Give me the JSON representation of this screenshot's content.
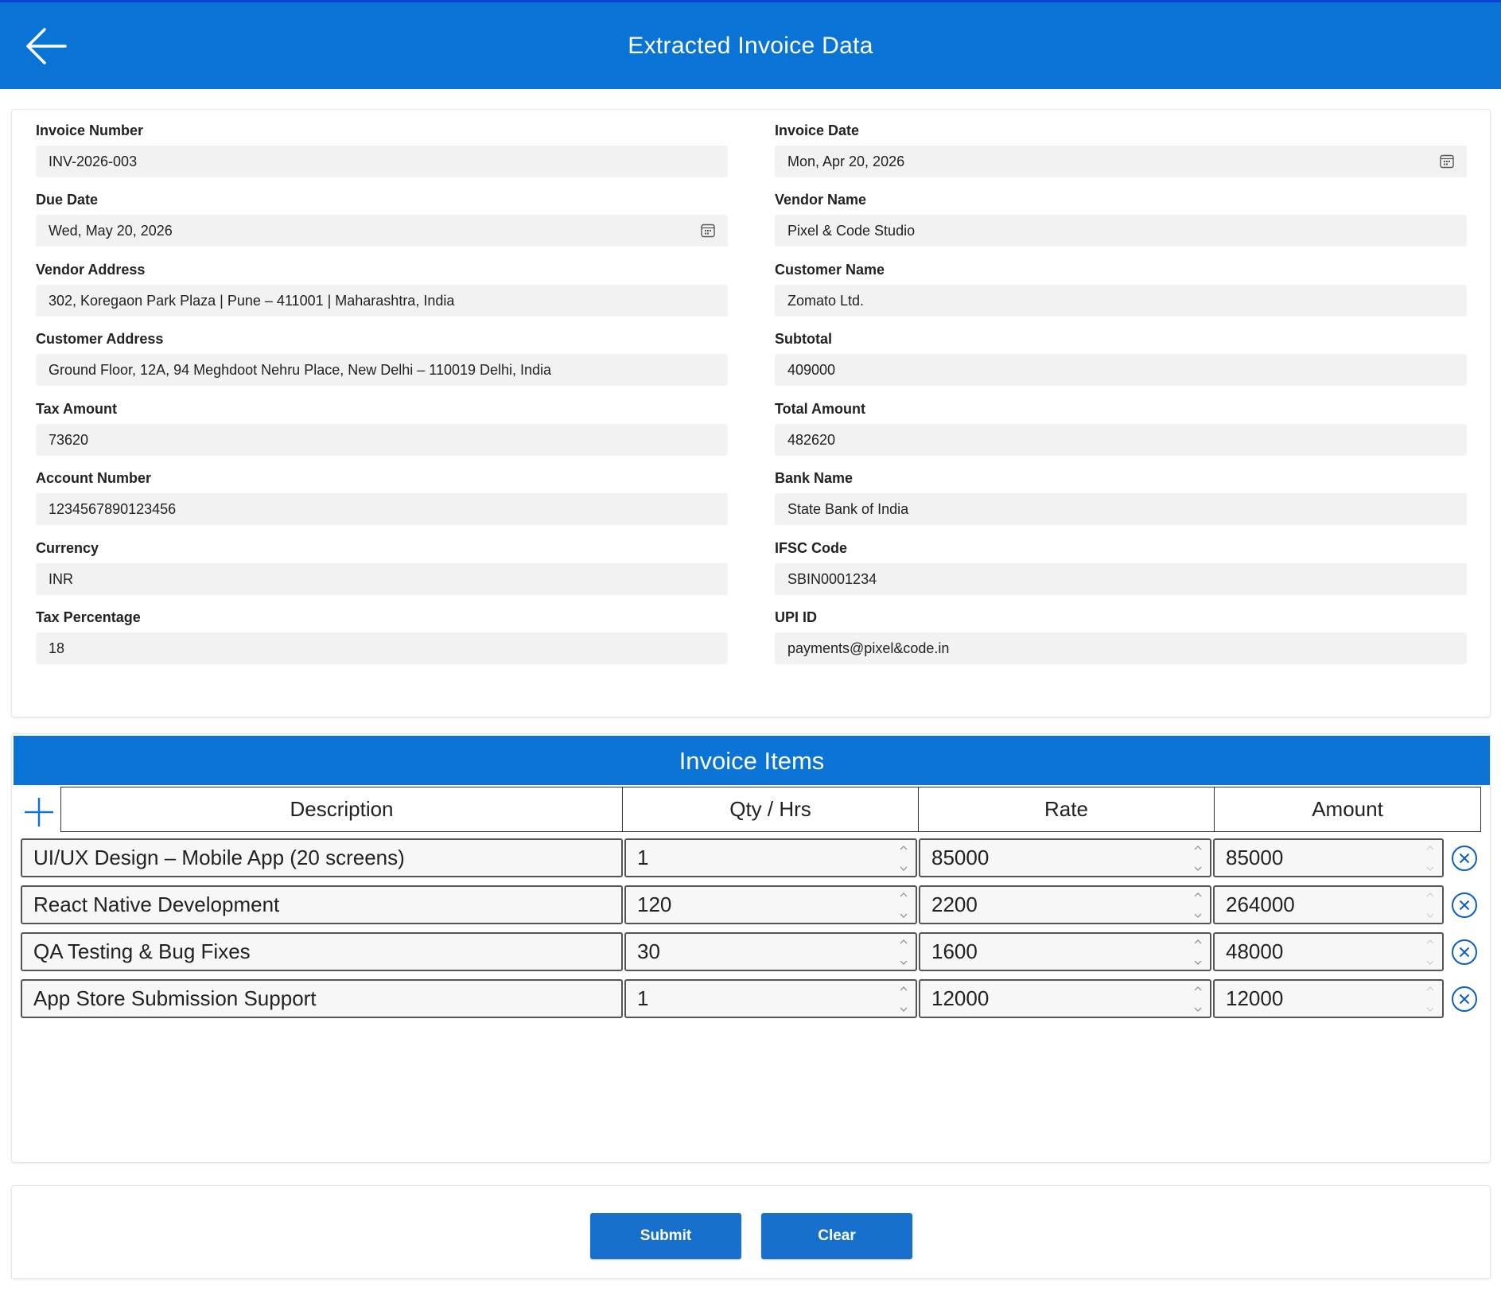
{
  "header": {
    "title": "Extracted Invoice Data",
    "back_icon": "arrow-left-icon"
  },
  "form": {
    "invoice_number": {
      "label": "Invoice Number",
      "value": "INV-2026-003"
    },
    "invoice_date": {
      "label": "Invoice Date",
      "value": "Mon, Apr 20, 2026"
    },
    "due_date": {
      "label": "Due Date",
      "value": "Wed, May 20, 2026"
    },
    "vendor_name": {
      "label": "Vendor Name",
      "value": "Pixel & Code Studio"
    },
    "vendor_address": {
      "label": "Vendor Address",
      "value": "302, Koregaon Park Plaza | Pune – 411001 | Maharashtra, India"
    },
    "customer_name": {
      "label": "Customer Name",
      "value": "Zomato Ltd."
    },
    "customer_address": {
      "label": "Customer Address",
      "value": "Ground Floor, 12A, 94 Meghdoot Nehru Place, New Delhi – 110019 Delhi, India"
    },
    "subtotal": {
      "label": "Subtotal",
      "value": "409000"
    },
    "tax_amount": {
      "label": "Tax Amount",
      "value": "73620"
    },
    "total_amount": {
      "label": "Total Amount",
      "value": "482620"
    },
    "account_number": {
      "label": "Account Number",
      "value": "1234567890123456"
    },
    "bank_name": {
      "label": "Bank Name",
      "value": "State Bank of India"
    },
    "currency": {
      "label": "Currency",
      "value": "INR"
    },
    "ifsc_code": {
      "label": "IFSC Code",
      "value": "SBIN0001234"
    },
    "tax_percentage": {
      "label": "Tax Percentage",
      "value": "18"
    },
    "upi_id": {
      "label": "UPI ID",
      "value": "payments@pixel&code.in"
    }
  },
  "items": {
    "title": "Invoice Items",
    "columns": {
      "description": "Description",
      "qty": "Qty / Hrs",
      "rate": "Rate",
      "amount": "Amount"
    },
    "rows": [
      {
        "description": "UI/UX Design – Mobile App (20 screens)",
        "qty": "1",
        "rate": "85000",
        "amount": "85000"
      },
      {
        "description": "React Native Development",
        "qty": "120",
        "rate": "2200",
        "amount": "264000"
      },
      {
        "description": "QA Testing & Bug Fixes",
        "qty": "30",
        "rate": "1600",
        "amount": "48000"
      },
      {
        "description": "App Store Submission Support",
        "qty": "1",
        "rate": "12000",
        "amount": "12000"
      }
    ]
  },
  "actions": {
    "submit_label": "Submit",
    "clear_label": "Clear"
  },
  "colors": {
    "primary": "#0a74d6",
    "button": "#1670cc",
    "field_bg": "#f2f2f2"
  }
}
